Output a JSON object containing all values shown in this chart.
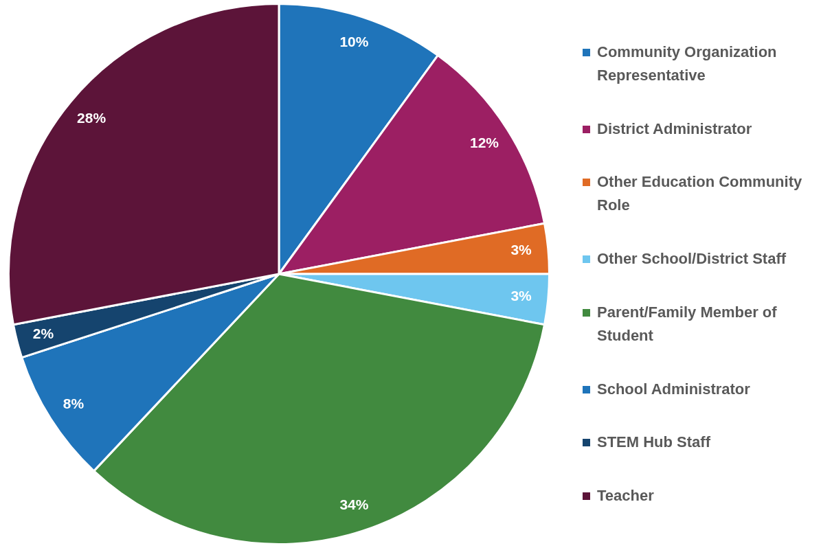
{
  "chart_data": {
    "type": "pie",
    "categories": [
      "Community Organization Representative",
      "District Administrator",
      "Other Education Community Role",
      "Other School/District Staff",
      "Parent/Family Member of Student",
      "School Administrator",
      "STEM Hub Staff",
      "Teacher"
    ],
    "values": [
      10,
      12,
      3,
      3,
      34,
      8,
      2,
      28
    ],
    "colors": [
      "#1f74ba",
      "#9c1f63",
      "#e06b25",
      "#6ec6ef",
      "#418a3f",
      "#1f74ba",
      "#15446e",
      "#5c1439"
    ],
    "value_labels": [
      "10%",
      "12%",
      "3%",
      "3%",
      "34%",
      "8%",
      "2%",
      "28%"
    ],
    "legend": "right"
  }
}
